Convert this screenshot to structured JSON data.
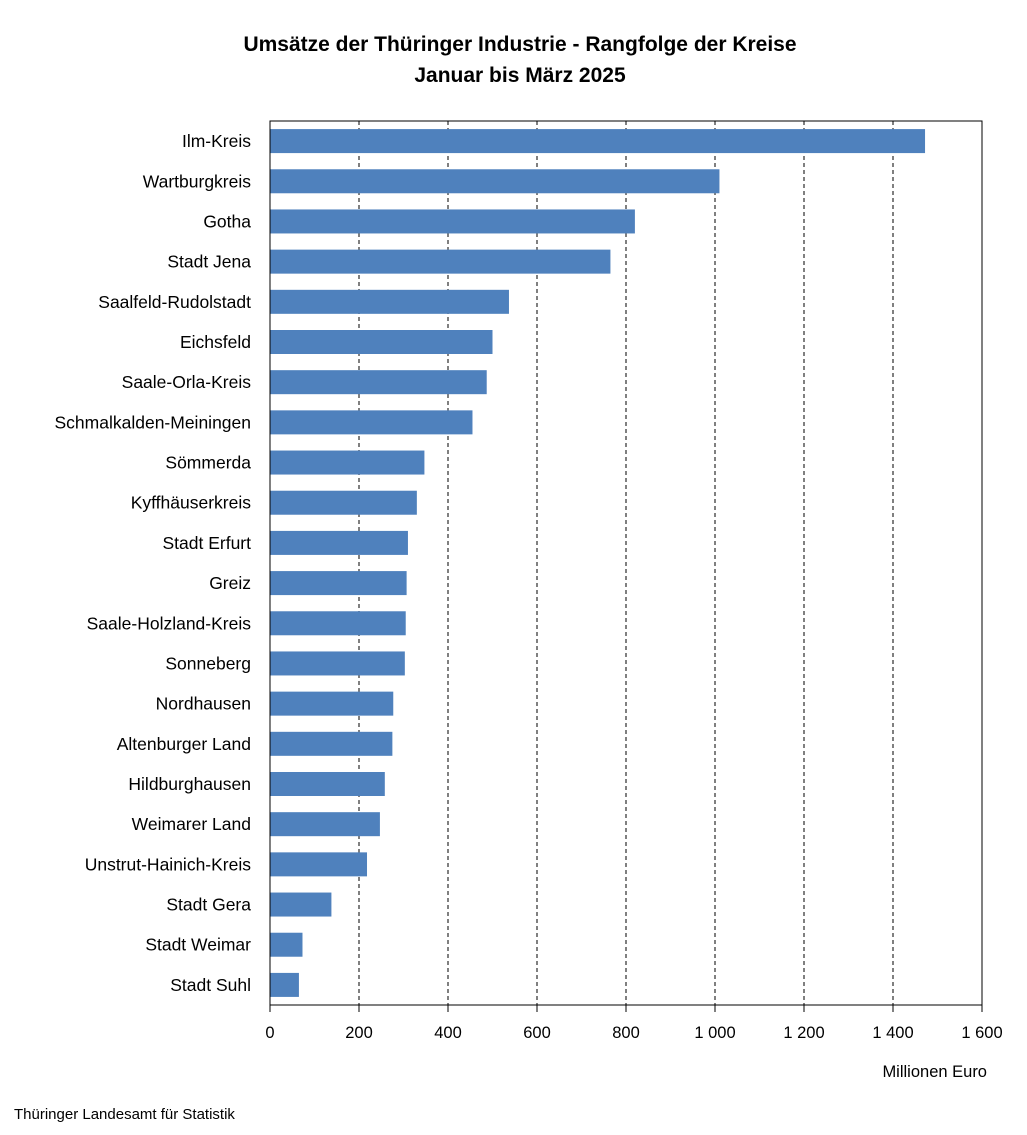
{
  "chart_data": {
    "type": "bar",
    "orientation": "horizontal",
    "title": "Umsätze der Thüringer Industrie - Rangfolge der Kreise",
    "subtitle": "Januar bis März 2025",
    "xlabel": "Millionen Euro",
    "xlim": [
      0,
      1600
    ],
    "ticks": [
      0,
      200,
      400,
      600,
      800,
      1000,
      1200,
      1400,
      1600
    ],
    "tick_labels": [
      "0",
      "200",
      "400",
      "600",
      "800",
      "1 000",
      "1 200",
      "1 400",
      "1 600"
    ],
    "grid": "vertical dashed",
    "bar_color": "#4f81bd",
    "categories": [
      "Ilm-Kreis",
      "Wartburgkreis",
      "Gotha",
      "Stadt Jena",
      "Saalfeld-Rudolstadt",
      "Eichsfeld",
      "Saale-Orla-Kreis",
      "Schmalkalden-Meiningen",
      "Sömmerda",
      "Kyffhäuserkreis",
      "Stadt Erfurt",
      "Greiz",
      "Saale-Holzland-Kreis",
      "Sonneberg",
      "Nordhausen",
      "Altenburger Land",
      "Hildburghausen",
      "Weimarer Land",
      "Unstrut-Hainich-Kreis",
      "Stadt Gera",
      "Stadt Weimar",
      "Stadt Suhl"
    ],
    "values": [
      1472,
      1010,
      820,
      765,
      537,
      500,
      487,
      455,
      347,
      330,
      310,
      307,
      305,
      303,
      277,
      275,
      258,
      247,
      218,
      138,
      73,
      65
    ]
  },
  "source": "Thüringer Landesamt für Statistik"
}
